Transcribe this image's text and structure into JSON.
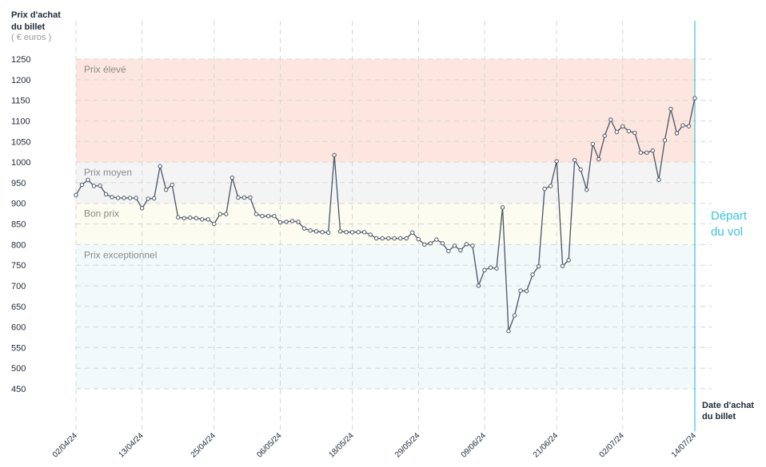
{
  "colors": {
    "line": "#4b5563",
    "marker_fill": "#ffffff",
    "grid": "#d6d6d6",
    "departure_line": "#3bc3df",
    "band_high": "#fde6df",
    "band_mid": "#f4f4f4",
    "band_good": "#fcfcf0",
    "band_exceptional": "#f1f9fb"
  },
  "chart_data": {
    "type": "line",
    "title": "",
    "ylabel_line1": "Prix d'achat",
    "ylabel_line2": "du billet",
    "ylabel_unit": "( € euros )",
    "xlabel_line1": "Date d'achat",
    "xlabel_line2": "du billet",
    "departure_line1": "Départ",
    "departure_line2": "du vol",
    "ylim": [
      450,
      1250
    ],
    "y_ticks": [
      450,
      500,
      550,
      600,
      650,
      700,
      750,
      800,
      850,
      900,
      950,
      1000,
      1050,
      1100,
      1150,
      1200,
      1250
    ],
    "x_start_date": "2024-04-02",
    "x_ticks": [
      "02/04/24",
      "13/04/24",
      "25/04/24",
      "06/05/24",
      "18/05/24",
      "29/05/24",
      "09/06/24",
      "21/06/24",
      "02/07/24",
      "14/07/24"
    ],
    "bands": [
      {
        "label": "Prix élevé",
        "from": 1000,
        "to": 1250,
        "color": "#fde6df"
      },
      {
        "label": "Prix moyen",
        "from": 900,
        "to": 1000,
        "color": "#f4f4f4"
      },
      {
        "label": "Bon prix",
        "from": 800,
        "to": 900,
        "color": "#fcfcf0"
      },
      {
        "label": "Prix exceptionnel",
        "from": 450,
        "to": 800,
        "color": "#f1f9fb"
      }
    ],
    "series": [
      {
        "values": [
          {
            "x": "2024-04-02",
            "y": 920
          },
          {
            "x": "2024-04-03",
            "y": 945
          },
          {
            "x": "2024-04-04",
            "y": 957
          },
          {
            "x": "2024-04-05",
            "y": 942
          },
          {
            "x": "2024-04-06",
            "y": 943
          },
          {
            "x": "2024-04-07",
            "y": 922
          },
          {
            "x": "2024-04-08",
            "y": 915
          },
          {
            "x": "2024-04-09",
            "y": 913
          },
          {
            "x": "2024-04-10",
            "y": 913
          },
          {
            "x": "2024-04-11",
            "y": 913
          },
          {
            "x": "2024-04-12",
            "y": 913
          },
          {
            "x": "2024-04-13",
            "y": 888
          },
          {
            "x": "2024-04-14",
            "y": 911
          },
          {
            "x": "2024-04-15",
            "y": 912
          },
          {
            "x": "2024-04-16",
            "y": 990
          },
          {
            "x": "2024-04-17",
            "y": 933
          },
          {
            "x": "2024-04-18",
            "y": 945
          },
          {
            "x": "2024-04-19",
            "y": 866
          },
          {
            "x": "2024-04-20",
            "y": 864
          },
          {
            "x": "2024-04-21",
            "y": 865
          },
          {
            "x": "2024-04-22",
            "y": 864
          },
          {
            "x": "2024-04-23",
            "y": 861
          },
          {
            "x": "2024-04-24",
            "y": 861
          },
          {
            "x": "2024-04-25",
            "y": 850
          },
          {
            "x": "2024-04-26",
            "y": 874
          },
          {
            "x": "2024-04-27",
            "y": 874
          },
          {
            "x": "2024-04-28",
            "y": 962
          },
          {
            "x": "2024-04-29",
            "y": 914
          },
          {
            "x": "2024-04-30",
            "y": 914
          },
          {
            "x": "2024-05-01",
            "y": 914
          },
          {
            "x": "2024-05-02",
            "y": 874
          },
          {
            "x": "2024-05-03",
            "y": 869
          },
          {
            "x": "2024-05-04",
            "y": 869
          },
          {
            "x": "2024-05-05",
            "y": 869
          },
          {
            "x": "2024-05-06",
            "y": 854
          },
          {
            "x": "2024-05-07",
            "y": 855
          },
          {
            "x": "2024-05-08",
            "y": 857
          },
          {
            "x": "2024-05-09",
            "y": 855
          },
          {
            "x": "2024-05-10",
            "y": 839
          },
          {
            "x": "2024-05-11",
            "y": 834
          },
          {
            "x": "2024-05-12",
            "y": 832
          },
          {
            "x": "2024-05-13",
            "y": 830
          },
          {
            "x": "2024-05-14",
            "y": 829
          },
          {
            "x": "2024-05-15",
            "y": 1017
          },
          {
            "x": "2024-05-16",
            "y": 832
          },
          {
            "x": "2024-05-17",
            "y": 830
          },
          {
            "x": "2024-05-18",
            "y": 830
          },
          {
            "x": "2024-05-19",
            "y": 830
          },
          {
            "x": "2024-05-20",
            "y": 830
          },
          {
            "x": "2024-05-21",
            "y": 824
          },
          {
            "x": "2024-05-22",
            "y": 815
          },
          {
            "x": "2024-05-23",
            "y": 815
          },
          {
            "x": "2024-05-24",
            "y": 815
          },
          {
            "x": "2024-05-25",
            "y": 815
          },
          {
            "x": "2024-05-26",
            "y": 815
          },
          {
            "x": "2024-05-27",
            "y": 815
          },
          {
            "x": "2024-05-28",
            "y": 829
          },
          {
            "x": "2024-05-29",
            "y": 813
          },
          {
            "x": "2024-05-30",
            "y": 800
          },
          {
            "x": "2024-05-31",
            "y": 803
          },
          {
            "x": "2024-06-01",
            "y": 812
          },
          {
            "x": "2024-06-02",
            "y": 803
          },
          {
            "x": "2024-06-03",
            "y": 784
          },
          {
            "x": "2024-06-04",
            "y": 797
          },
          {
            "x": "2024-06-05",
            "y": 786
          },
          {
            "x": "2024-06-06",
            "y": 801
          },
          {
            "x": "2024-06-07",
            "y": 797
          },
          {
            "x": "2024-06-08",
            "y": 700
          },
          {
            "x": "2024-06-09",
            "y": 738
          },
          {
            "x": "2024-06-10",
            "y": 744
          },
          {
            "x": "2024-06-11",
            "y": 742
          },
          {
            "x": "2024-06-12",
            "y": 890
          },
          {
            "x": "2024-06-13",
            "y": 590
          },
          {
            "x": "2024-06-14",
            "y": 628
          },
          {
            "x": "2024-06-15",
            "y": 688
          },
          {
            "x": "2024-06-16",
            "y": 687
          },
          {
            "x": "2024-06-17",
            "y": 727
          },
          {
            "x": "2024-06-18",
            "y": 747
          },
          {
            "x": "2024-06-19",
            "y": 935
          },
          {
            "x": "2024-06-20",
            "y": 942
          },
          {
            "x": "2024-06-21",
            "y": 1002
          },
          {
            "x": "2024-06-22",
            "y": 748
          },
          {
            "x": "2024-06-23",
            "y": 762
          },
          {
            "x": "2024-06-24",
            "y": 1005
          },
          {
            "x": "2024-06-25",
            "y": 982
          },
          {
            "x": "2024-06-26",
            "y": 933
          },
          {
            "x": "2024-06-27",
            "y": 1044
          },
          {
            "x": "2024-06-28",
            "y": 1007
          },
          {
            "x": "2024-06-29",
            "y": 1064
          },
          {
            "x": "2024-06-30",
            "y": 1103
          },
          {
            "x": "2024-07-01",
            "y": 1073
          },
          {
            "x": "2024-07-02",
            "y": 1087
          },
          {
            "x": "2024-07-03",
            "y": 1075
          },
          {
            "x": "2024-07-04",
            "y": 1071
          },
          {
            "x": "2024-07-05",
            "y": 1023
          },
          {
            "x": "2024-07-06",
            "y": 1023
          },
          {
            "x": "2024-07-07",
            "y": 1028
          },
          {
            "x": "2024-07-08",
            "y": 957
          },
          {
            "x": "2024-07-09",
            "y": 1053
          },
          {
            "x": "2024-07-10",
            "y": 1129
          },
          {
            "x": "2024-07-11",
            "y": 1070
          },
          {
            "x": "2024-07-12",
            "y": 1089
          },
          {
            "x": "2024-07-13",
            "y": 1087
          },
          {
            "x": "2024-07-14",
            "y": 1155
          }
        ]
      }
    ],
    "departure_date": "2024-07-14",
    "grid": true,
    "marker": "hollow-circle"
  }
}
